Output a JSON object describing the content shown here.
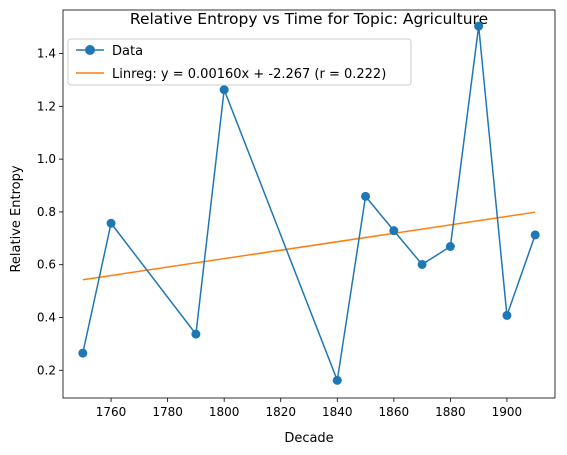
{
  "chart_data": {
    "type": "line",
    "title": "Relative Entropy vs Time for Topic: Agriculture",
    "xlabel": "Decade",
    "ylabel": "Relative Entropy",
    "xlim": [
      1743,
      1917
    ],
    "ylim": [
      0.095,
      1.565
    ],
    "xticks": [
      1760,
      1780,
      1800,
      1820,
      1840,
      1860,
      1880,
      1900
    ],
    "yticks": [
      0.2,
      0.4,
      0.6,
      0.8,
      1.0,
      1.2,
      1.4
    ],
    "ytick_labels": [
      "0.2",
      "0.4",
      "0.6",
      "0.8",
      "1.0",
      "1.2",
      "1.4"
    ],
    "grid": false,
    "legend_position": "upper left",
    "series": [
      {
        "name": "Data",
        "type": "line-marker",
        "color": "#1f77b4",
        "x": [
          1750,
          1760,
          1790,
          1800,
          1840,
          1850,
          1860,
          1870,
          1880,
          1890,
          1900,
          1910
        ],
        "y": [
          0.265,
          0.757,
          0.337,
          1.263,
          0.162,
          0.859,
          0.729,
          0.601,
          0.669,
          1.504,
          0.408,
          0.713
        ]
      },
      {
        "name": "Linreg: y = 0.00160x + -2.267 (r = 0.222)",
        "type": "line",
        "color": "#ff7f0e",
        "x": [
          1750,
          1910
        ],
        "y": [
          0.543,
          0.799
        ]
      }
    ]
  }
}
